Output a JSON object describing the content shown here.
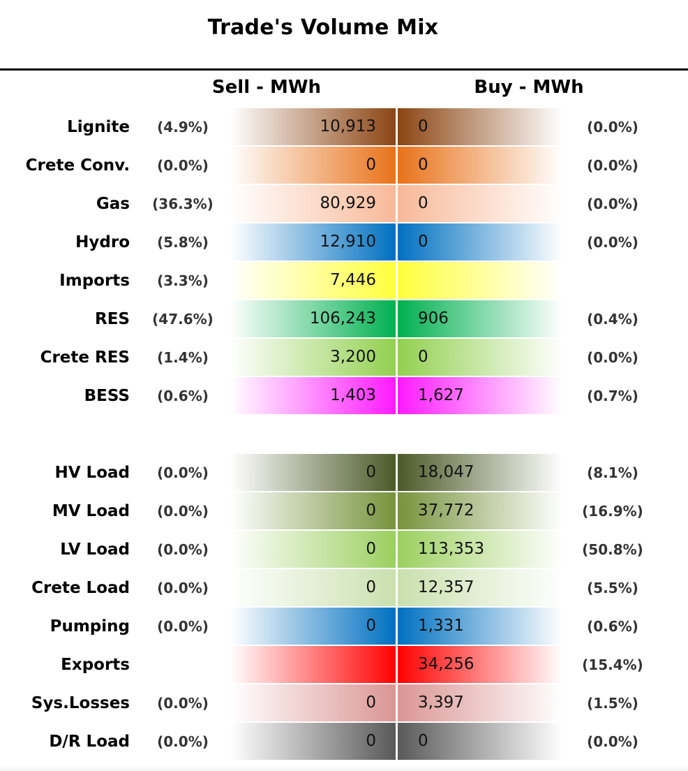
{
  "chart_data": {
    "type": "table",
    "title": "Trade's Volume Mix",
    "sell_header": "Sell - MWh",
    "buy_header": "Buy - MWh",
    "rows": [
      {
        "label": "Lignite",
        "sell": "10,913",
        "sell_pct": "(4.9%)",
        "buy": "0",
        "buy_pct": "(0.0%)",
        "color": "#8b4513"
      },
      {
        "label": "Crete Conv.",
        "sell": "0",
        "sell_pct": "(0.0%)",
        "buy": "0",
        "buy_pct": "(0.0%)",
        "color": "#e8721a"
      },
      {
        "label": "Gas",
        "sell": "80,929",
        "sell_pct": "(36.3%)",
        "buy": "0",
        "buy_pct": "(0.0%)",
        "color": "#f8b998"
      },
      {
        "label": "Hydro",
        "sell": "12,910",
        "sell_pct": "(5.8%)",
        "buy": "0",
        "buy_pct": "(0.0%)",
        "color": "#0070c0"
      },
      {
        "label": "Imports",
        "sell": "7,446",
        "sell_pct": "(3.3%)",
        "buy": "",
        "buy_pct": "",
        "color": "#ffff3c"
      },
      {
        "label": "RES",
        "sell": "106,243",
        "sell_pct": "(47.6%)",
        "buy": "906",
        "buy_pct": "(0.4%)",
        "color": "#00b050"
      },
      {
        "label": "Crete RES",
        "sell": "3,200",
        "sell_pct": "(1.4%)",
        "buy": "0",
        "buy_pct": "(0.0%)",
        "color": "#92d050"
      },
      {
        "label": "BESS",
        "sell": "1,403",
        "sell_pct": "(0.6%)",
        "buy": "1,627",
        "buy_pct": "(0.7%)",
        "color": "#ff1aff"
      },
      {
        "label": "HV Load",
        "sell": "0",
        "sell_pct": "(0.0%)",
        "buy": "18,047",
        "buy_pct": "(8.1%)",
        "color": "#4b5a28"
      },
      {
        "label": "MV Load",
        "sell": "0",
        "sell_pct": "(0.0%)",
        "buy": "37,772",
        "buy_pct": "(16.9%)",
        "color": "#76933c"
      },
      {
        "label": "LV Load",
        "sell": "0",
        "sell_pct": "(0.0%)",
        "buy": "113,353",
        "buy_pct": "(50.8%)",
        "color": "#9bcf5f"
      },
      {
        "label": "Crete Load",
        "sell": "0",
        "sell_pct": "(0.0%)",
        "buy": "12,357",
        "buy_pct": "(5.5%)",
        "color": "#c9e0ae"
      },
      {
        "label": "Pumping",
        "sell": "0",
        "sell_pct": "(0.0%)",
        "buy": "1,331",
        "buy_pct": "(0.6%)",
        "color": "#0070c0"
      },
      {
        "label": "Exports",
        "sell": "",
        "sell_pct": "",
        "buy": "34,256",
        "buy_pct": "(15.4%)",
        "color": "#ff0000"
      },
      {
        "label": "Sys.Losses",
        "sell": "0",
        "sell_pct": "(0.0%)",
        "buy": "3,397",
        "buy_pct": "(1.5%)",
        "color": "#da9694"
      },
      {
        "label": "D/R Load",
        "sell": "0",
        "sell_pct": "(0.0%)",
        "buy": "0",
        "buy_pct": "(0.0%)",
        "color": "#595959"
      }
    ]
  }
}
